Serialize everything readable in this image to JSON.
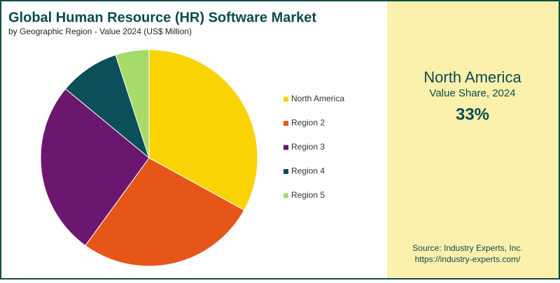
{
  "chart_data": {
    "type": "pie",
    "title": "Global Human Resource (HR) Software Market",
    "subtitle": "by Geographic Region - Value 2024 (US$ Million)",
    "categories": [
      "North America",
      "Region 2",
      "Region 3",
      "Region 4",
      "Region 5"
    ],
    "values": [
      33,
      27,
      26,
      9,
      5
    ],
    "colors": [
      "#fad402",
      "#e75619",
      "#6b1770",
      "#0b4f58",
      "#a6db6b"
    ],
    "legend": "right"
  },
  "callout": {
    "region": "North America",
    "label": "Value Share, 2024",
    "value": "33%"
  },
  "source": {
    "line1": "Source: Industry Experts, Inc.",
    "line2": "https://industry-experts.com/"
  }
}
